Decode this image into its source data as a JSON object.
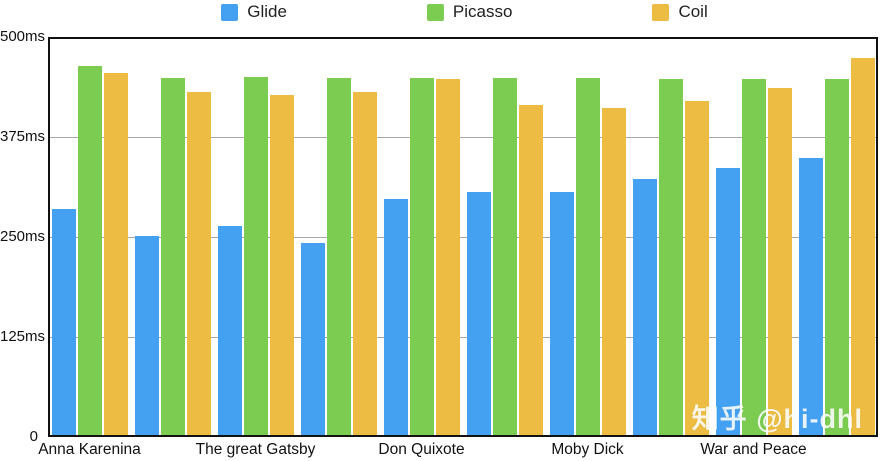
{
  "watermark": "知乎 @hi-dhl",
  "legend": {
    "items": [
      {
        "label": "Glide",
        "color": "#44A1F2"
      },
      {
        "label": "Picasso",
        "color": "#7CCC52"
      },
      {
        "label": "Coil",
        "color": "#EDBD43"
      }
    ]
  },
  "chart_data": {
    "type": "bar",
    "title": "",
    "unit": "ms",
    "categories": [
      "Anna Karenina",
      "",
      "The great Gatsby",
      "",
      "Don Quixote",
      "",
      "Moby Dick",
      "",
      "War and Peace",
      ""
    ],
    "series": [
      {
        "name": "Glide",
        "color": "#44A1F2",
        "values": [
          285,
          251,
          264,
          243,
          298,
          306,
          306,
          323,
          336,
          349
        ]
      },
      {
        "name": "Picasso",
        "color": "#7CCC52",
        "values": [
          464,
          449,
          450,
          449,
          449,
          449,
          449,
          448,
          448,
          448
        ]
      },
      {
        "name": "Coil",
        "color": "#EDBD43",
        "values": [
          455,
          431,
          428,
          431,
          448,
          415,
          411,
          420,
          436,
          474
        ]
      }
    ],
    "ylim": [
      0,
      500
    ],
    "y_ticks": [
      {
        "value": 0,
        "label": "0"
      },
      {
        "value": 125,
        "label": "125ms"
      },
      {
        "value": 250,
        "label": "250ms"
      },
      {
        "value": 375,
        "label": "375ms"
      },
      {
        "value": 500,
        "label": "500ms"
      }
    ],
    "grid": "horizontal",
    "legend_position": "top"
  }
}
